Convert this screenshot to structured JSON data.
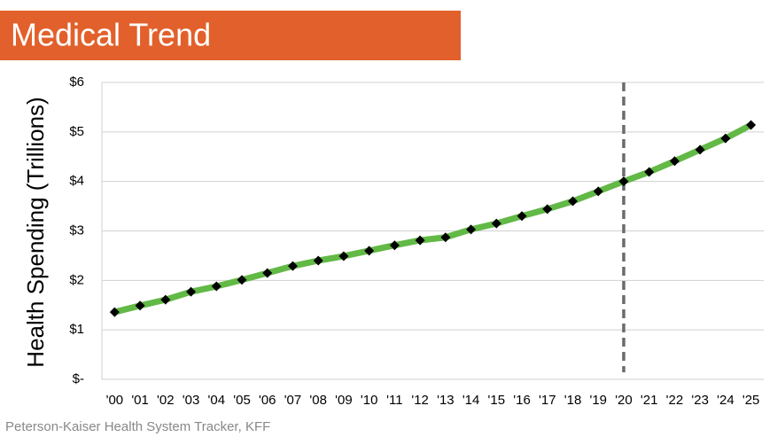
{
  "chart_data": {
    "type": "line",
    "title": "Medical Trend",
    "y_label": "Health Spending (Trillions)",
    "source": "Peterson-Kaiser Health System Tracker, KFF",
    "categories": [
      "'00",
      "'01",
      "'02",
      "'03",
      "'04",
      "'05",
      "'06",
      "'07",
      "'08",
      "'09",
      "'10",
      "'11",
      "'12",
      "'13",
      "'14",
      "'15",
      "'16",
      "'17",
      "'18",
      "'19",
      "'20",
      "'21",
      "'22",
      "'23",
      "'24",
      "'25"
    ],
    "values": [
      1.36,
      1.49,
      1.61,
      1.77,
      1.88,
      2.01,
      2.15,
      2.29,
      2.4,
      2.49,
      2.6,
      2.71,
      2.81,
      2.87,
      3.03,
      3.15,
      3.3,
      3.44,
      3.6,
      3.8,
      4.0,
      4.19,
      4.41,
      4.64,
      4.87,
      5.14
    ],
    "color": "#62b946",
    "marker_color": "#000000",
    "title_color": "#e2602b",
    "ylim": [
      0,
      6
    ],
    "yticks": [
      {
        "value": 0,
        "label": "$-"
      },
      {
        "value": 1,
        "label": "$1"
      },
      {
        "value": 2,
        "label": "$2"
      },
      {
        "value": 3,
        "label": "$3"
      },
      {
        "value": 4,
        "label": "$4"
      },
      {
        "value": 5,
        "label": "$5"
      },
      {
        "value": 6,
        "label": "$6"
      }
    ],
    "grid": true,
    "vline_at": "'20"
  }
}
